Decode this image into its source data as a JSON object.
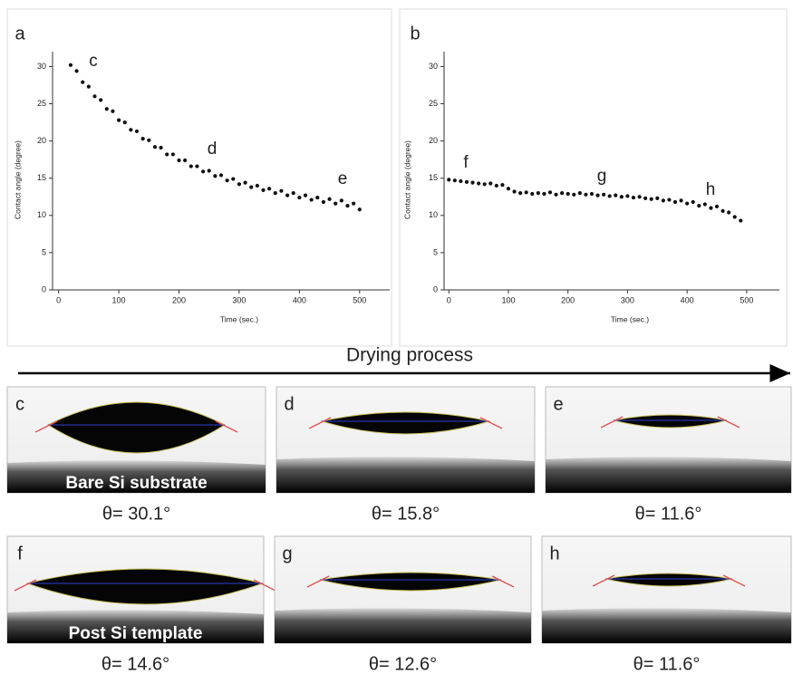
{
  "chart_data": [
    {
      "type": "scatter",
      "panel_label": "a",
      "annotations": [
        "c",
        "d",
        "e"
      ],
      "xlabel": "Time (sec.)",
      "ylabel": "Contact angle (degree)",
      "color": "#111111",
      "xlim": [
        -10,
        550
      ],
      "ylim": [
        0,
        32
      ],
      "xticks": [
        0,
        100,
        200,
        300,
        400,
        500
      ],
      "yticks": [
        0,
        5,
        10,
        15,
        20,
        25,
        30
      ],
      "x": [
        20,
        30,
        40,
        50,
        60,
        70,
        80,
        90,
        100,
        110,
        120,
        130,
        140,
        150,
        160,
        170,
        180,
        190,
        200,
        210,
        220,
        230,
        240,
        250,
        260,
        270,
        280,
        290,
        300,
        310,
        320,
        330,
        340,
        350,
        360,
        370,
        380,
        390,
        400,
        410,
        420,
        430,
        440,
        450,
        460,
        470,
        480,
        490,
        500
      ],
      "values": [
        30.2,
        29.4,
        27.9,
        27.3,
        26.0,
        25.5,
        24.3,
        24.0,
        22.8,
        22.5,
        21.5,
        21.3,
        20.3,
        20.1,
        19.2,
        19.1,
        18.2,
        18.2,
        17.4,
        17.4,
        16.6,
        16.6,
        15.9,
        16.0,
        15.3,
        15.4,
        14.7,
        14.9,
        14.2,
        14.4,
        13.8,
        14.0,
        13.4,
        13.6,
        13.0,
        13.3,
        12.7,
        13.0,
        12.4,
        12.7,
        12.1,
        12.4,
        11.8,
        12.2,
        11.6,
        12.0,
        11.3,
        11.6,
        10.8
      ]
    },
    {
      "type": "scatter",
      "panel_label": "b",
      "annotations": [
        "f",
        "g",
        "h"
      ],
      "xlabel": "Time (sec.)",
      "ylabel": "Contact angle (degree)",
      "color": "#111111",
      "xlim": [
        -8,
        555
      ],
      "ylim": [
        0,
        32
      ],
      "xticks": [
        0,
        100,
        200,
        300,
        400,
        500
      ],
      "yticks": [
        0,
        5,
        10,
        15,
        20,
        25,
        30
      ],
      "x": [
        0,
        10,
        20,
        30,
        40,
        50,
        60,
        70,
        80,
        90,
        100,
        110,
        120,
        130,
        140,
        150,
        160,
        170,
        180,
        190,
        200,
        210,
        220,
        230,
        240,
        250,
        260,
        270,
        280,
        290,
        300,
        310,
        320,
        330,
        340,
        350,
        360,
        370,
        380,
        390,
        400,
        410,
        420,
        430,
        440,
        450,
        460,
        470,
        480,
        490
      ],
      "values": [
        14.8,
        14.7,
        14.6,
        14.5,
        14.4,
        14.3,
        14.2,
        14.3,
        14.0,
        14.1,
        13.6,
        13.2,
        13.0,
        13.1,
        12.9,
        13.0,
        12.9,
        13.1,
        12.8,
        13.0,
        12.9,
        12.8,
        13.0,
        12.8,
        12.9,
        12.7,
        12.8,
        12.6,
        12.7,
        12.5,
        12.6,
        12.4,
        12.5,
        12.3,
        12.2,
        12.3,
        12.0,
        12.1,
        11.8,
        12.0,
        11.6,
        11.8,
        11.3,
        11.5,
        11.0,
        11.2,
        10.6,
        10.4,
        9.8,
        9.3
      ]
    }
  ],
  "arrow_label": "Drying process",
  "droplets": [
    {
      "label": "c",
      "caption": "θ= 30.1°",
      "substrate": "Bare Si substrate"
    },
    {
      "label": "d",
      "caption": "θ= 15.8°"
    },
    {
      "label": "e",
      "caption": "θ= 11.6°"
    },
    {
      "label": "f",
      "caption": "θ= 14.6°",
      "substrate": "Post Si template"
    },
    {
      "label": "g",
      "caption": "θ= 12.6°"
    },
    {
      "label": "h",
      "caption": "θ= 11.6°"
    }
  ]
}
